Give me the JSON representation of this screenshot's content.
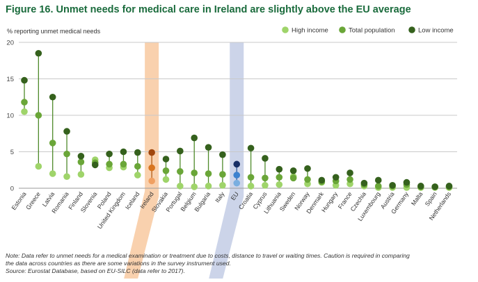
{
  "title": "Figure 16. Unmet needs for medical care in Ireland are slightly above the EU average",
  "chart_data": {
    "type": "scatter",
    "ylabel": "% reporting unmet medical needs",
    "ylim": [
      0,
      20
    ],
    "yticks": [
      0,
      5,
      10,
      15,
      20
    ],
    "grid": true,
    "legend_position": "top-right",
    "highlighted_categories": [
      "Ireland",
      "EU"
    ],
    "categories": [
      "Estonia",
      "Greece",
      "Latvia",
      "Romania",
      "Finland",
      "Slovenia",
      "Poland",
      "United Kingdom",
      "Iceland",
      "Ireland",
      "Slovakia",
      "Portugal",
      "Belgium",
      "Bulgaria",
      "Italy",
      "EU",
      "Croatia",
      "Cyprus",
      "Lithuania",
      "Sweden",
      "Norway",
      "Denmark",
      "Hungary",
      "France",
      "Czechia",
      "Luxembourg",
      "Austria",
      "Germany",
      "Malta",
      "Spain",
      "Netherlands"
    ],
    "series": [
      {
        "name": "High income",
        "color": "#9fd46a",
        "values": [
          10.5,
          3.0,
          2.0,
          1.6,
          1.9,
          3.9,
          2.8,
          2.9,
          1.8,
          1.0,
          1.2,
          0.3,
          0.2,
          0.3,
          0.4,
          0.7,
          0.3,
          0.4,
          0.5,
          1.6,
          0.6,
          0.8,
          0.4,
          0.6,
          0.3,
          0.1,
          0.1,
          0.1,
          0.1,
          0.1,
          0.1
        ]
      },
      {
        "name": "Total population",
        "color": "#6aa638",
        "values": [
          11.8,
          10.0,
          6.2,
          4.7,
          3.6,
          3.5,
          3.3,
          3.3,
          3.0,
          2.8,
          2.4,
          2.3,
          2.1,
          2.0,
          1.9,
          1.8,
          1.5,
          1.4,
          1.5,
          1.4,
          1.2,
          0.9,
          1.0,
          1.2,
          0.5,
          0.3,
          0.3,
          0.5,
          0.2,
          0.2,
          0.2
        ]
      },
      {
        "name": "Low income",
        "color": "#35611d",
        "values": [
          14.8,
          18.5,
          12.5,
          7.8,
          4.4,
          3.2,
          4.7,
          5.0,
          4.9,
          4.9,
          4.0,
          5.1,
          6.9,
          5.6,
          4.6,
          3.3,
          5.5,
          4.1,
          2.6,
          2.4,
          2.7,
          1.1,
          1.5,
          2.1,
          0.7,
          1.1,
          0.4,
          0.8,
          0.3,
          0.2,
          0.3
        ]
      }
    ],
    "highlight_colors": {
      "Ireland": {
        "band": "#f8c9a0",
        "line": "#b25a14",
        "high": "#f0a062",
        "total": "#d87520",
        "low": "#a0460d"
      },
      "EU": {
        "band": "#c3cde5",
        "line": "#2d5b9a",
        "high": "#79aee0",
        "total": "#3d82cf",
        "low": "#172f66"
      }
    }
  },
  "notes": {
    "line1": "Note: Data refer to unmet needs for a medical examination or treatment due to costs, distance to travel or waiting times. Caution is required in comparing",
    "line2": "the data across countries as there are some variations in the survey instrument used.",
    "source": "Source: Eurostat Database, based on EU-SILC (data refer to 2017)."
  }
}
